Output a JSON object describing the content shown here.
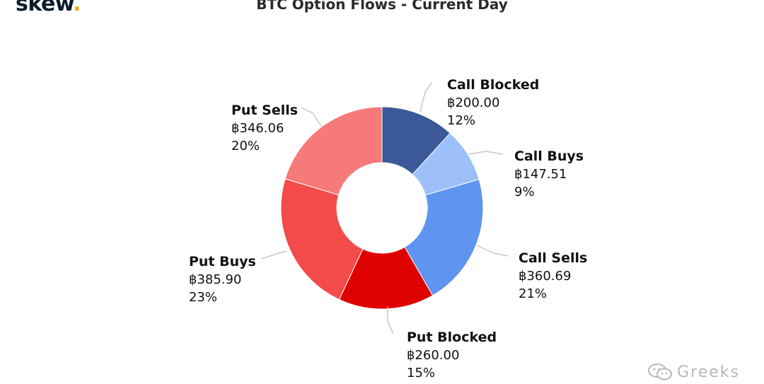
{
  "brand": {
    "name": "skew",
    "dot": "."
  },
  "title": "BTC Option Flows - Current Day",
  "watermark": "Greeks",
  "chart_data": {
    "type": "pie",
    "title": "BTC Option Flows - Current Day",
    "donut": true,
    "currency_symbol": "฿",
    "slices": [
      {
        "name": "Call Blocked",
        "value": 200.0,
        "value_label": "฿200.00",
        "percent_label": "12%",
        "color": "#3b5998"
      },
      {
        "name": "Call Buys",
        "value": 147.51,
        "value_label": "฿147.51",
        "percent_label": "9%",
        "color": "#9dc0fb"
      },
      {
        "name": "Call Sells",
        "value": 360.69,
        "value_label": "฿360.69",
        "percent_label": "21%",
        "color": "#5f95f0"
      },
      {
        "name": "Put Blocked",
        "value": 260.0,
        "value_label": "฿260.00",
        "percent_label": "15%",
        "color": "#df0000"
      },
      {
        "name": "Put Buys",
        "value": 385.9,
        "value_label": "฿385.90",
        "percent_label": "23%",
        "color": "#f34a4a"
      },
      {
        "name": "Put Sells",
        "value": 346.06,
        "value_label": "฿346.06",
        "percent_label": "20%",
        "color": "#f77a7a"
      }
    ]
  }
}
